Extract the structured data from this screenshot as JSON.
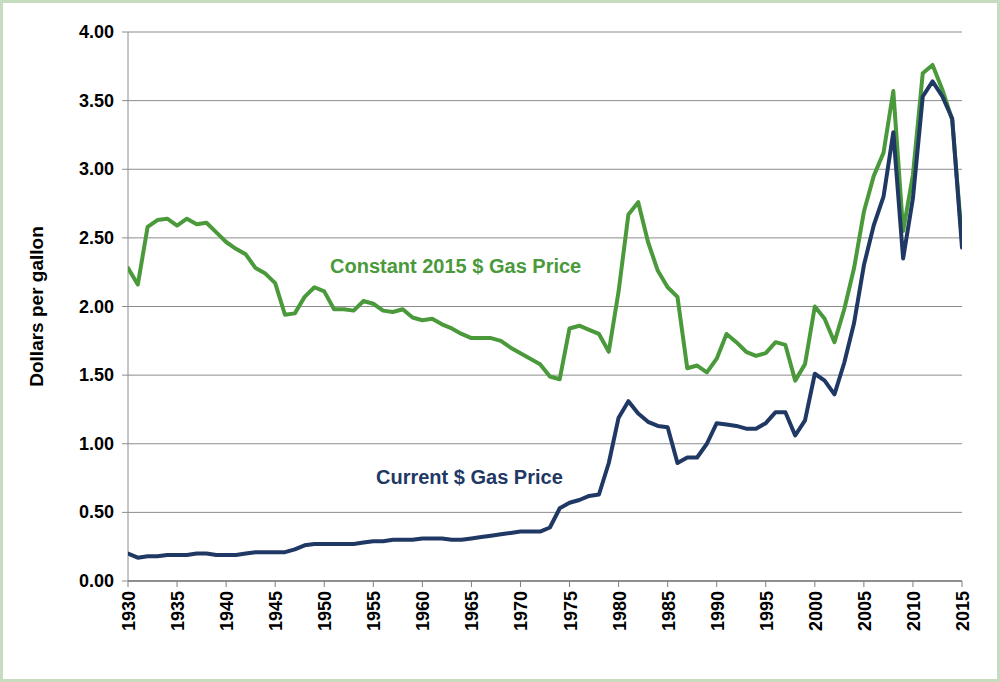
{
  "chart_data": {
    "type": "line",
    "y_label": "Dollars per gallon",
    "x": [
      1930,
      1931,
      1932,
      1933,
      1934,
      1935,
      1936,
      1937,
      1938,
      1939,
      1940,
      1941,
      1942,
      1943,
      1944,
      1945,
      1946,
      1947,
      1948,
      1949,
      1950,
      1951,
      1952,
      1953,
      1954,
      1955,
      1956,
      1957,
      1958,
      1959,
      1960,
      1961,
      1962,
      1963,
      1964,
      1965,
      1966,
      1967,
      1968,
      1969,
      1970,
      1971,
      1972,
      1973,
      1974,
      1975,
      1976,
      1977,
      1978,
      1979,
      1980,
      1981,
      1982,
      1983,
      1984,
      1985,
      1986,
      1987,
      1988,
      1989,
      1990,
      1991,
      1992,
      1993,
      1994,
      1995,
      1996,
      1997,
      1998,
      1999,
      2000,
      2001,
      2002,
      2003,
      2004,
      2005,
      2006,
      2007,
      2008,
      2009,
      2010,
      2011,
      2012,
      2013,
      2014,
      2015
    ],
    "series": [
      {
        "name": "Constant 2015 $ Gas Price",
        "color": "#4a9a3c",
        "values": [
          2.28,
          2.16,
          2.58,
          2.63,
          2.64,
          2.59,
          2.64,
          2.6,
          2.61,
          2.54,
          2.47,
          2.42,
          2.38,
          2.28,
          2.24,
          2.17,
          1.94,
          1.95,
          2.07,
          2.14,
          2.11,
          1.98,
          1.98,
          1.97,
          2.04,
          2.02,
          1.97,
          1.96,
          1.98,
          1.92,
          1.9,
          1.91,
          1.87,
          1.84,
          1.8,
          1.77,
          1.77,
          1.77,
          1.75,
          1.7,
          1.66,
          1.62,
          1.58,
          1.49,
          1.47,
          1.84,
          1.86,
          1.83,
          1.8,
          1.67,
          2.11,
          2.67,
          2.76,
          2.47,
          2.26,
          2.14,
          2.07,
          1.55,
          1.57,
          1.52,
          1.62,
          1.8,
          1.74,
          1.67,
          1.64,
          1.66,
          1.74,
          1.72,
          1.46,
          1.58,
          2.0,
          1.91,
          1.74,
          1.98,
          2.28,
          2.69,
          2.95,
          3.12,
          3.57,
          2.55,
          2.96,
          3.7,
          3.76,
          3.58,
          3.36,
          2.48
        ]
      },
      {
        "name": "Current $ Gas Price",
        "color": "#1f3864",
        "values": [
          0.2,
          0.17,
          0.18,
          0.18,
          0.19,
          0.19,
          0.19,
          0.2,
          0.2,
          0.19,
          0.19,
          0.19,
          0.2,
          0.21,
          0.21,
          0.21,
          0.21,
          0.23,
          0.26,
          0.27,
          0.27,
          0.27,
          0.27,
          0.27,
          0.28,
          0.29,
          0.29,
          0.3,
          0.3,
          0.3,
          0.31,
          0.31,
          0.31,
          0.3,
          0.3,
          0.31,
          0.32,
          0.33,
          0.34,
          0.35,
          0.36,
          0.36,
          0.36,
          0.39,
          0.53,
          0.57,
          0.59,
          0.62,
          0.63,
          0.86,
          1.19,
          1.31,
          1.22,
          1.16,
          1.13,
          1.12,
          0.86,
          0.9,
          0.9,
          1.0,
          1.15,
          1.14,
          1.13,
          1.11,
          1.11,
          1.15,
          1.23,
          1.23,
          1.06,
          1.17,
          1.51,
          1.46,
          1.36,
          1.59,
          1.88,
          2.3,
          2.59,
          2.8,
          3.27,
          2.35,
          2.79,
          3.53,
          3.64,
          3.53,
          3.37,
          2.43
        ]
      }
    ],
    "xlim": [
      1930,
      2015
    ],
    "xticks": [
      1930,
      1935,
      1940,
      1945,
      1950,
      1955,
      1960,
      1965,
      1970,
      1975,
      1980,
      1985,
      1990,
      1995,
      2000,
      2005,
      2010,
      2015
    ],
    "ylim": [
      0,
      4
    ],
    "yticks": [
      {
        "value": 0,
        "label": "0.00"
      },
      {
        "value": 0.5,
        "label": "0.50"
      },
      {
        "value": 1,
        "label": "1.00"
      },
      {
        "value": 1.5,
        "label": "1.50"
      },
      {
        "value": 2,
        "label": "2.00"
      },
      {
        "value": 2.5,
        "label": "2.50"
      },
      {
        "value": 3,
        "label": "3.00"
      },
      {
        "value": 3.5,
        "label": "3.50"
      },
      {
        "value": 4,
        "label": "4.00"
      }
    ],
    "grid": true
  }
}
